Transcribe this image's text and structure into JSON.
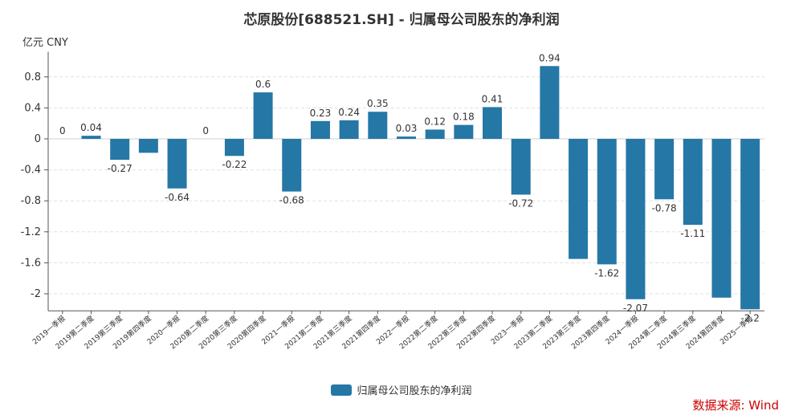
{
  "title": "芯原股份[688521.SH] - 归属母公司股东的净利润",
  "unit": "亿元  CNY",
  "source": "数据来源: Wind",
  "colors": {
    "bar": "#2577a6",
    "source": "#cc0000",
    "grid": "#e0e0e0",
    "axis": "#555555",
    "text": "#333333"
  },
  "legend": {
    "label": "归属母公司股东的净利润"
  },
  "chart_data": {
    "type": "bar",
    "title": "芯原股份[688521.SH] - 归属母公司股东的净利润",
    "ylabel": "亿元  CNY",
    "ylim": [
      -2.2,
      1.0
    ],
    "yticks": [
      0.8,
      0.4,
      0,
      -0.4,
      -0.8,
      -1.2,
      -1.6,
      -2
    ],
    "ytick_labels": [
      "0.8",
      "0.4",
      "0",
      "-0.4",
      "-0.8",
      "-1.2",
      "-1.6",
      "-2"
    ],
    "categories": [
      "2019一季报",
      "2019第二季度",
      "2019第三季度",
      "2019第四季度",
      "2020一季报",
      "2020第二季度",
      "2020第三季度",
      "2020第四季度",
      "2021一季报",
      "2021第二季度",
      "2021第三季度",
      "2021第四季度",
      "2022一季报",
      "2022第二季度",
      "2022第三季度",
      "2022第四季度",
      "2023一季报",
      "2023第二季度",
      "2023第三季度",
      "2023第四季度",
      "2024一季报",
      "2024第二季度",
      "2024第三季度",
      "2024第四季度",
      "2025一季报"
    ],
    "series": [
      {
        "name": "归属母公司股东的净利润",
        "values": [
          0,
          0.04,
          -0.27,
          -0.18,
          -0.64,
          0,
          -0.22,
          0.6,
          -0.68,
          0.23,
          0.24,
          0.35,
          0.03,
          0.12,
          0.18,
          0.41,
          -0.72,
          0.94,
          -1.55,
          -1.62,
          -2.07,
          -0.78,
          -1.11,
          -2.05,
          -2.2
        ],
        "labels": [
          "0",
          "0.04",
          "-0.27",
          "",
          "-0.64",
          "0",
          "-0.22",
          "0.6",
          "-0.68",
          "0.23",
          "0.24",
          "0.35",
          "0.03",
          "0.12",
          "0.18",
          "0.41",
          "-0.72",
          "0.94",
          "",
          "-1.62",
          "-2.07",
          "-0.78",
          "-1.11",
          "",
          "-2.2"
        ]
      }
    ],
    "grid": true,
    "legend_position": "bottom-center"
  }
}
